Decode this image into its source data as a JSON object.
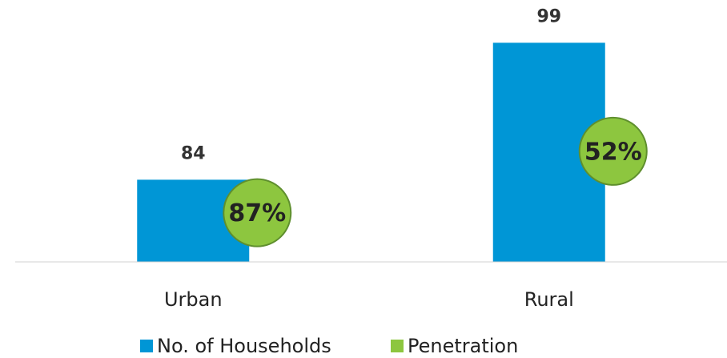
{
  "chart_data": {
    "type": "bar",
    "categories": [
      "Urban",
      "Rural"
    ],
    "series": [
      {
        "name": "No. of Households",
        "color": "#0096d6",
        "values": [
          84,
          99
        ]
      },
      {
        "name": "Penetration",
        "color": "#8dc63f",
        "axis": "y2",
        "values": [
          87,
          52
        ],
        "value_labels": [
          "87%",
          "52%"
        ]
      }
    ],
    "ylim": [
      75,
      100
    ],
    "y2lim": [
      115,
      -15
    ],
    "legend": "bottom"
  }
}
